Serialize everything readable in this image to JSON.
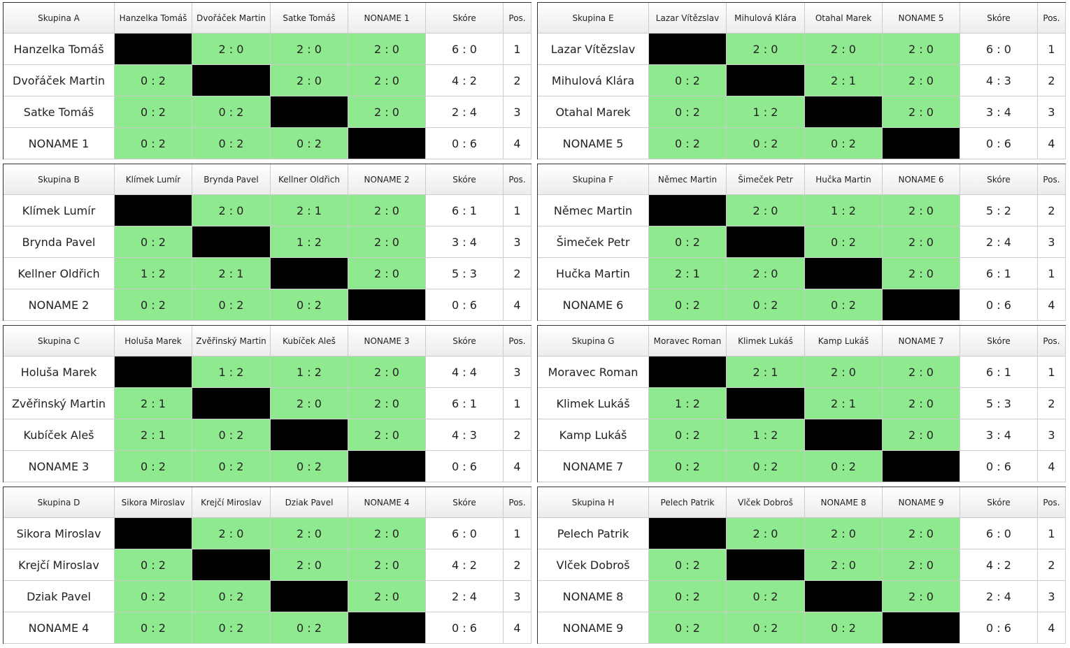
{
  "headers": {
    "score": "Skóre",
    "pos": "Pos."
  },
  "groups": [
    {
      "title": "Skupina A",
      "rows": [
        {
          "name": "Hanzelka Tomáš",
          "results": [
            null,
            "2 : 0",
            "2 : 0",
            "2 : 0"
          ],
          "score": "6 : 0",
          "pos": 1
        },
        {
          "name": "Dvořáček Martin",
          "results": [
            "0 : 2",
            null,
            "2 : 0",
            "2 : 0"
          ],
          "score": "4 : 2",
          "pos": 2
        },
        {
          "name": "Satke Tomáš",
          "results": [
            "0 : 2",
            "0 : 2",
            null,
            "2 : 0"
          ],
          "score": "2 : 4",
          "pos": 3
        },
        {
          "name": "NONAME 1",
          "results": [
            "0 : 2",
            "0 : 2",
            "0 : 2",
            null
          ],
          "score": "0 : 6",
          "pos": 4
        }
      ]
    },
    {
      "title": "Skupina B",
      "rows": [
        {
          "name": "Klímek Lumír",
          "results": [
            null,
            "2 : 0",
            "2 : 1",
            "2 : 0"
          ],
          "score": "6 : 1",
          "pos": 1
        },
        {
          "name": "Brynda Pavel",
          "results": [
            "0 : 2",
            null,
            "1 : 2",
            "2 : 0"
          ],
          "score": "3 : 4",
          "pos": 3
        },
        {
          "name": "Kellner Oldřich",
          "results": [
            "1 : 2",
            "2 : 1",
            null,
            "2 : 0"
          ],
          "score": "5 : 3",
          "pos": 2
        },
        {
          "name": "NONAME 2",
          "results": [
            "0 : 2",
            "0 : 2",
            "0 : 2",
            null
          ],
          "score": "0 : 6",
          "pos": 4
        }
      ]
    },
    {
      "title": "Skupina C",
      "rows": [
        {
          "name": "Holuša Marek",
          "results": [
            null,
            "1 : 2",
            "1 : 2",
            "2 : 0"
          ],
          "score": "4 : 4",
          "pos": 3
        },
        {
          "name": "Zvěřinský Martin",
          "results": [
            "2 : 1",
            null,
            "2 : 0",
            "2 : 0"
          ],
          "score": "6 : 1",
          "pos": 1
        },
        {
          "name": "Kubíček Aleš",
          "results": [
            "2 : 1",
            "0 : 2",
            null,
            "2 : 0"
          ],
          "score": "4 : 3",
          "pos": 2
        },
        {
          "name": "NONAME 3",
          "results": [
            "0 : 2",
            "0 : 2",
            "0 : 2",
            null
          ],
          "score": "0 : 6",
          "pos": 4
        }
      ]
    },
    {
      "title": "Skupina D",
      "rows": [
        {
          "name": "Sikora Miroslav",
          "results": [
            null,
            "2 : 0",
            "2 : 0",
            "2 : 0"
          ],
          "score": "6 : 0",
          "pos": 1
        },
        {
          "name": "Krejčí Miroslav",
          "results": [
            "0 : 2",
            null,
            "2 : 0",
            "2 : 0"
          ],
          "score": "4 : 2",
          "pos": 2
        },
        {
          "name": "Dziak Pavel",
          "results": [
            "0 : 2",
            "0 : 2",
            null,
            "2 : 0"
          ],
          "score": "2 : 4",
          "pos": 3
        },
        {
          "name": "NONAME 4",
          "results": [
            "0 : 2",
            "0 : 2",
            "0 : 2",
            null
          ],
          "score": "0 : 6",
          "pos": 4
        }
      ]
    },
    {
      "title": "Skupina E",
      "rows": [
        {
          "name": "Lazar Vítězslav",
          "results": [
            null,
            "2 : 0",
            "2 : 0",
            "2 : 0"
          ],
          "score": "6 : 0",
          "pos": 1
        },
        {
          "name": "Mihulová Klára",
          "results": [
            "0 : 2",
            null,
            "2 : 1",
            "2 : 0"
          ],
          "score": "4 : 3",
          "pos": 2
        },
        {
          "name": "Otahal Marek",
          "results": [
            "0 : 2",
            "1 : 2",
            null,
            "2 : 0"
          ],
          "score": "3 : 4",
          "pos": 3
        },
        {
          "name": "NONAME 5",
          "results": [
            "0 : 2",
            "0 : 2",
            "0 : 2",
            null
          ],
          "score": "0 : 6",
          "pos": 4
        }
      ]
    },
    {
      "title": "Skupina F",
      "rows": [
        {
          "name": "Němec Martin",
          "results": [
            null,
            "2 : 0",
            "1 : 2",
            "2 : 0"
          ],
          "score": "5 : 2",
          "pos": 2
        },
        {
          "name": "Šimeček Petr",
          "results": [
            "0 : 2",
            null,
            "0 : 2",
            "2 : 0"
          ],
          "score": "2 : 4",
          "pos": 3
        },
        {
          "name": "Hučka Martin",
          "results": [
            "2 : 1",
            "2 : 0",
            null,
            "2 : 0"
          ],
          "score": "6 : 1",
          "pos": 1
        },
        {
          "name": "NONAME 6",
          "results": [
            "0 : 2",
            "0 : 2",
            "0 : 2",
            null
          ],
          "score": "0 : 6",
          "pos": 4
        }
      ]
    },
    {
      "title": "Skupina G",
      "rows": [
        {
          "name": "Moravec Roman",
          "results": [
            null,
            "2 : 1",
            "2 : 0",
            "2 : 0"
          ],
          "score": "6 : 1",
          "pos": 1
        },
        {
          "name": "Klimek Lukáš",
          "results": [
            "1 : 2",
            null,
            "2 : 1",
            "2 : 0"
          ],
          "score": "5 : 3",
          "pos": 2
        },
        {
          "name": "Kamp Lukáš",
          "results": [
            "0 : 2",
            "1 : 2",
            null,
            "2 : 0"
          ],
          "score": "3 : 4",
          "pos": 3
        },
        {
          "name": "NONAME 7",
          "results": [
            "0 : 2",
            "0 : 2",
            "0 : 2",
            null
          ],
          "score": "0 : 6",
          "pos": 4
        }
      ]
    },
    {
      "title": "Skupina H",
      "rows": [
        {
          "name": "Pelech Patrik",
          "results": [
            null,
            "2 : 0",
            "2 : 0",
            "2 : 0"
          ],
          "score": "6 : 0",
          "pos": 1
        },
        {
          "name": "Vlček Dobroš",
          "results": [
            "0 : 2",
            null,
            "2 : 0",
            "2 : 0"
          ],
          "score": "4 : 2",
          "pos": 2
        },
        {
          "name": "NONAME 8",
          "results": [
            "0 : 2",
            "0 : 2",
            null,
            "2 : 0"
          ],
          "score": "2 : 4",
          "pos": 3
        },
        {
          "name": "NONAME 9",
          "results": [
            "0 : 2",
            "0 : 2",
            "0 : 2",
            null
          ],
          "score": "0 : 6",
          "pos": 4
        }
      ]
    }
  ]
}
